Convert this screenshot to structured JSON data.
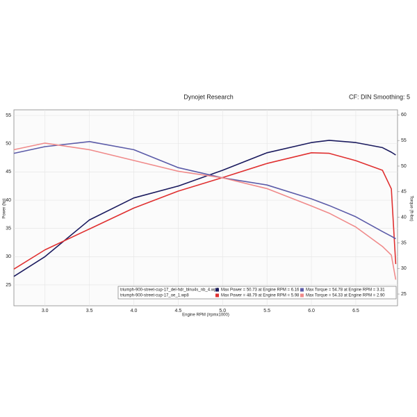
{
  "chart_data": {
    "type": "line",
    "title": "Dynojet Research",
    "subtitle": "CF: DIN Smoothing: 5",
    "x_label": "Engine RPM (/rpmx1000)",
    "y_label": "Power (hp)",
    "y2_label": "Torque (ft-lbs)",
    "x": [
      2.65,
      3.0,
      3.5,
      4.0,
      4.5,
      5.0,
      5.5,
      6.0,
      6.2,
      6.5,
      6.8,
      6.9,
      6.95
    ],
    "series": [
      {
        "color": "#1a1a5e",
        "axis": "y",
        "values": [
          26.5,
          30,
          36.5,
          40.4,
          42.5,
          45.3,
          48.4,
          50.2,
          50.6,
          50.2,
          49.3,
          48.5,
          48
        ]
      },
      {
        "color": "#e03030",
        "axis": "y",
        "values": [
          27.8,
          31.2,
          34.9,
          38.6,
          41.6,
          44,
          46.5,
          48.4,
          48.3,
          47,
          45.3,
          42,
          28.7
        ]
      },
      {
        "color": "#5b5ba8",
        "axis": "y2",
        "values": [
          52.5,
          53.8,
          54.8,
          53.2,
          49.7,
          47.7,
          46.3,
          43.6,
          42.3,
          40.1,
          37.2,
          36.3,
          35.8
        ]
      },
      {
        "color": "#f08a8a",
        "axis": "y2",
        "values": [
          53.2,
          54.5,
          53.2,
          51.1,
          49,
          47.7,
          45.6,
          42.2,
          40.8,
          38.1,
          34.3,
          32.6,
          27.8
        ]
      }
    ],
    "legend": [
      {
        "file": "triumph-900-street-cup-17_del-hdr_blnu4s_nb_4.wp8",
        "max_power": "Max Power = 50.73 at Engine RPM = 6.16",
        "max_torque": "Max Torque = 54.78 at Engine RPM = 3.31",
        "color": "#1a1a5e",
        "torque_color": "#5b5ba8"
      },
      {
        "file": "triumph-900-street-cup-17_oe_1.wp8",
        "max_power": "Max Power = 48.79 at Engine RPM = 5.98",
        "max_torque": "Max Torque = 54.33 at Engine RPM = 2.90",
        "color": "#e03030",
        "torque_color": "#f08a8a"
      }
    ],
    "xlim": [
      2.65,
      6.97
    ],
    "xticks": [
      {
        "value": 3,
        "label": "3.0"
      },
      3.5,
      {
        "value": 4,
        "label": "4.0"
      },
      4.5,
      {
        "value": 5,
        "label": "5.0"
      },
      5.5,
      {
        "value": 6,
        "label": "6.0"
      },
      6.5
    ],
    "ylim": [
      21.3,
      56
    ],
    "yticks": [
      25,
      30,
      35,
      40,
      45,
      50,
      55
    ],
    "y2lim": [
      22.7,
      61
    ],
    "y2ticks": [
      25,
      30,
      35,
      40,
      45,
      50,
      55,
      60
    ],
    "grid": true
  }
}
